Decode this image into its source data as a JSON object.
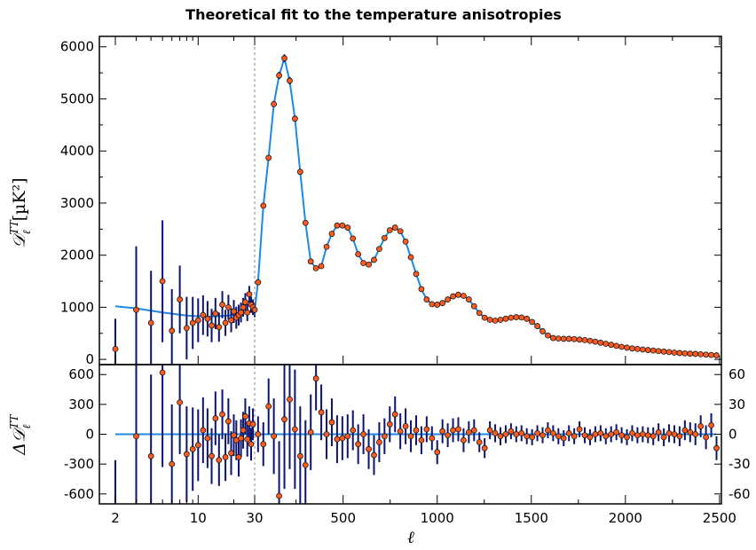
{
  "chart_data": {
    "type": "scatter",
    "title": "Theoretical fit to the temperature anisotropies",
    "xlabel": "ℓ",
    "x_axis": {
      "scale": "hybrid: log for ℓ < 30, linear for ℓ ≥ 30",
      "ticks": [
        "2",
        "10",
        "30",
        "500",
        "1000",
        "1500",
        "2000",
        "2500"
      ],
      "range": [
        2,
        2510
      ]
    },
    "dashed_line_at": 30,
    "top_panel": {
      "ylabel_main": "𝒟",
      "ylabel_sup": "TT",
      "ylabel_sub": "ℓ",
      "ylabel_unit": "[µK²]",
      "ylim": [
        -100,
        6200
      ],
      "yticks": [
        "0",
        "1000",
        "2000",
        "3000",
        "4000",
        "5000",
        "6000"
      ],
      "data_points": {
        "x": [
          2,
          3,
          4,
          5,
          6,
          7,
          8,
          9,
          10,
          11,
          12,
          13,
          14,
          15,
          16,
          17,
          18,
          19,
          20,
          21,
          22,
          23,
          24,
          25,
          26,
          27,
          28,
          29,
          30,
          48,
          76,
          104,
          132,
          160,
          188,
          216,
          244,
          272,
          300,
          328,
          356,
          384,
          412,
          440,
          468,
          496,
          524,
          552,
          580,
          608,
          636,
          664,
          692,
          720,
          748,
          776,
          804,
          832,
          860,
          888,
          916,
          944,
          972,
          1000,
          1028,
          1056,
          1084,
          1112,
          1140,
          1168,
          1196,
          1224,
          1252,
          1280,
          1308,
          1336,
          1364,
          1392,
          1420,
          1448,
          1476,
          1504,
          1532,
          1560,
          1588,
          1616,
          1644,
          1672,
          1700,
          1728,
          1756,
          1784,
          1812,
          1840,
          1868,
          1896,
          1924,
          1952,
          1980,
          2008,
          2036,
          2064,
          2092,
          2120,
          2148,
          2176,
          2204,
          2232,
          2260,
          2288,
          2316,
          2344,
          2372,
          2400,
          2428,
          2456,
          2484
        ],
        "y": [
          200,
          950,
          700,
          1500,
          550,
          1150,
          600,
          700,
          750,
          850,
          780,
          650,
          880,
          620,
          1050,
          700,
          1000,
          750,
          920,
          800,
          850,
          900,
          1000,
          1100,
          900,
          1250,
          1050,
          1000,
          950,
          1480,
          2950,
          3870,
          4900,
          5450,
          5780,
          5350,
          4620,
          3600,
          2620,
          1880,
          1750,
          1790,
          2160,
          2410,
          2570,
          2570,
          2530,
          2320,
          2020,
          1850,
          1820,
          1910,
          2120,
          2330,
          2480,
          2530,
          2460,
          2260,
          1960,
          1640,
          1350,
          1150,
          1060,
          1050,
          1080,
          1150,
          1210,
          1240,
          1220,
          1150,
          1020,
          890,
          800,
          760,
          745,
          760,
          780,
          800,
          810,
          805,
          780,
          720,
          640,
          540,
          460,
          410,
          400,
          395,
          395,
          390,
          380,
          370,
          355,
          340,
          320,
          300,
          280,
          260,
          240,
          225,
          210,
          200,
          190,
          180,
          170,
          160,
          150,
          140,
          130,
          122,
          115,
          110,
          105,
          98,
          92,
          85,
          78
        ],
        "err": [
          580,
          1220,
          1000,
          1170,
          800,
          650,
          600,
          500,
          420,
          380,
          340,
          320,
          300,
          280,
          260,
          250,
          240,
          230,
          220,
          210,
          200,
          190,
          180,
          170,
          165,
          160,
          155,
          150,
          140,
          40,
          45,
          50,
          60,
          70,
          75,
          70,
          60,
          50,
          40,
          35,
          30,
          30,
          30,
          30,
          30,
          30,
          30,
          28,
          26,
          26,
          26,
          26,
          26,
          26,
          26,
          26,
          26,
          26,
          24,
          22,
          20,
          18,
          16,
          16,
          16,
          16,
          16,
          16,
          16,
          16,
          15,
          14,
          13,
          13,
          13,
          13,
          13,
          13,
          13,
          13,
          12,
          12,
          12,
          12,
          11,
          11,
          11,
          11,
          11,
          11,
          11,
          11,
          11,
          11,
          11,
          11,
          11,
          11,
          11,
          11,
          11,
          11,
          11,
          11,
          12,
          12,
          12,
          12,
          12,
          12,
          13,
          13,
          13,
          14,
          14,
          15,
          15
        ]
      },
      "model_curve": {
        "x": [
          2,
          3,
          5,
          8,
          12,
          18,
          25,
          30,
          48,
          76,
          104,
          132,
          160,
          188,
          216,
          244,
          272,
          300,
          328,
          356,
          384,
          412,
          440,
          468,
          496,
          524,
          552,
          580,
          608,
          636,
          664,
          692,
          720,
          748,
          776,
          804,
          832,
          860,
          888,
          916,
          944,
          972,
          1000,
          1028,
          1056,
          1084,
          1112,
          1140,
          1168,
          1196,
          1224,
          1252,
          1280,
          1308,
          1336,
          1364,
          1392,
          1420,
          1448,
          1476,
          1504,
          1532,
          1560,
          1588,
          1616,
          1644,
          1672,
          1700,
          1728,
          1756,
          1784,
          1812,
          1840,
          1868,
          1896,
          1924,
          1952,
          1980,
          2008,
          2036,
          2064,
          2092,
          2120,
          2148,
          2176,
          2204,
          2232,
          2260,
          2288,
          2316,
          2344,
          2372,
          2400,
          2428,
          2456,
          2484,
          2500
        ],
        "y": [
          1020,
          980,
          900,
          840,
          820,
          840,
          900,
          950,
          1480,
          2950,
          3870,
          4900,
          5450,
          5780,
          5350,
          4620,
          3600,
          2620,
          1880,
          1750,
          1790,
          2160,
          2410,
          2570,
          2570,
          2530,
          2320,
          2020,
          1850,
          1820,
          1910,
          2120,
          2330,
          2480,
          2530,
          2460,
          2260,
          1960,
          1640,
          1350,
          1150,
          1060,
          1050,
          1080,
          1150,
          1210,
          1240,
          1220,
          1150,
          1020,
          890,
          800,
          760,
          745,
          760,
          780,
          800,
          810,
          805,
          780,
          720,
          640,
          540,
          460,
          410,
          400,
          395,
          395,
          390,
          380,
          370,
          355,
          340,
          320,
          300,
          280,
          260,
          240,
          225,
          210,
          200,
          190,
          180,
          170,
          160,
          150,
          140,
          130,
          122,
          115,
          110,
          105,
          98,
          92,
          85,
          78,
          75
        ]
      }
    },
    "bottom_panel": {
      "ylabel_main": "Δ𝒟",
      "ylabel_sup": "TT",
      "ylabel_sub": "ℓ",
      "left_ylim": [
        -700,
        700
      ],
      "left_yticks": [
        "600",
        "300",
        "0",
        "-300",
        "-600"
      ],
      "right_ylim": [
        -70,
        70
      ],
      "right_yticks": [
        "60",
        "30",
        "0",
        "-30",
        "-60"
      ],
      "left_residuals": {
        "x": [
          2,
          3,
          4,
          5,
          6,
          7,
          8,
          9,
          10,
          11,
          12,
          13,
          14,
          15,
          16,
          17,
          18,
          19,
          20,
          21,
          22,
          23,
          24,
          25,
          26,
          27,
          28,
          29
        ],
        "y": [
          -800,
          -20,
          -220,
          620,
          -300,
          320,
          -200,
          -150,
          -110,
          40,
          -40,
          -220,
          160,
          -260,
          200,
          -230,
          130,
          -190,
          -10,
          -60,
          -230,
          -40,
          40,
          180,
          -50,
          110,
          -100,
          100
        ],
        "err": [
          540,
          1000,
          820,
          950,
          600,
          520,
          480,
          420,
          360,
          330,
          300,
          280,
          270,
          260,
          250,
          240,
          230,
          220,
          210,
          200,
          195,
          190,
          185,
          180,
          175,
          170,
          165,
          160
        ]
      },
      "right_residuals": {
        "x": [
          48,
          76,
          104,
          132,
          160,
          188,
          216,
          244,
          272,
          300,
          328,
          356,
          384,
          412,
          440,
          468,
          496,
          524,
          552,
          580,
          608,
          636,
          664,
          692,
          720,
          748,
          776,
          804,
          832,
          860,
          888,
          916,
          944,
          972,
          1000,
          1028,
          1056,
          1084,
          1112,
          1140,
          1168,
          1196,
          1224,
          1252,
          1280,
          1308,
          1336,
          1364,
          1392,
          1420,
          1448,
          1476,
          1504,
          1532,
          1560,
          1588,
          1616,
          1644,
          1672,
          1700,
          1728,
          1756,
          1784,
          1812,
          1840,
          1868,
          1896,
          1924,
          1952,
          1980,
          2008,
          2036,
          2064,
          2092,
          2120,
          2148,
          2176,
          2204,
          2232,
          2260,
          2288,
          2316,
          2344,
          2372,
          2400,
          2428,
          2456,
          2484
        ],
        "y": [
          0,
          -10,
          28,
          -2,
          -62,
          15,
          35,
          5,
          -22,
          -31,
          2,
          56,
          22,
          0,
          12,
          -5,
          -4,
          -2,
          4,
          -10,
          0,
          -15,
          -21,
          -8,
          -2,
          10,
          20,
          3,
          8,
          -2,
          4,
          -6,
          5,
          -4,
          -18,
          3,
          -1,
          4,
          5,
          -6,
          2,
          4,
          -8,
          -14,
          4,
          1,
          -2,
          0,
          3,
          0,
          1,
          -2,
          -3,
          1,
          -1,
          4,
          1,
          -2,
          -4,
          1,
          -2,
          5,
          -1,
          -3,
          0,
          1,
          -2,
          0,
          2,
          -1,
          -3,
          1,
          -1,
          0,
          -1,
          -2,
          2,
          -3,
          1,
          0,
          -2,
          4,
          2,
          0,
          8,
          -3,
          9,
          -14
        ],
        "err": [
          18,
          22,
          28,
          38,
          55,
          70,
          70,
          60,
          50,
          45,
          38,
          32,
          28,
          25,
          24,
          24,
          22,
          22,
          20,
          20,
          20,
          20,
          20,
          20,
          18,
          18,
          18,
          18,
          18,
          16,
          15,
          14,
          13,
          12,
          12,
          12,
          12,
          12,
          12,
          12,
          11,
          11,
          10,
          10,
          9,
          9,
          9,
          9,
          8,
          8,
          8,
          8,
          8,
          8,
          8,
          8,
          8,
          8,
          8,
          8,
          8,
          8,
          8,
          8,
          8,
          8,
          8,
          8,
          8,
          8,
          8,
          8,
          8,
          8,
          8,
          9,
          9,
          9,
          9,
          9,
          10,
          10,
          10,
          11,
          11,
          12,
          12,
          12
        ]
      }
    },
    "colors": {
      "data_marker_fill": "#ff5a1e",
      "data_marker_edge": "#1a1a1a",
      "error_bar": "#0b1470",
      "model_line": "#1e88e5",
      "dashed_line": "#888888",
      "axes": "#000000"
    }
  }
}
